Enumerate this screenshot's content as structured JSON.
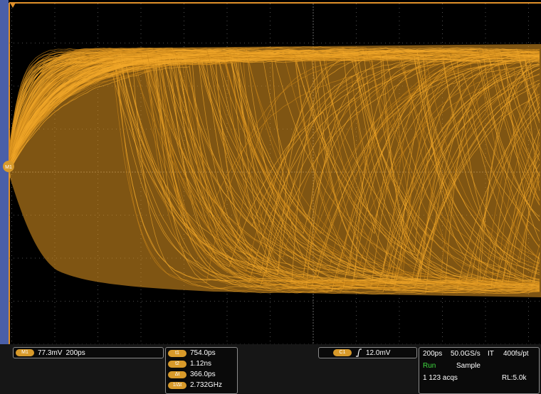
{
  "markers": {
    "reference": "M1"
  },
  "readouts": {
    "math": {
      "label": "M1",
      "scale": "77.3mV",
      "timebase": "200ps"
    },
    "cursors": [
      {
        "label": "t1",
        "value": "754.0ps"
      },
      {
        "label": "t2",
        "value": "1.12ns"
      },
      {
        "label": "Δt",
        "value": "366.0ps"
      },
      {
        "label": "1/Δt",
        "value": "2.732GHz"
      }
    ],
    "trigger": {
      "label": "C1",
      "level": "12.0mV"
    },
    "acquisition": {
      "timebase": "200ps",
      "sample_rate": "50.0GS/s",
      "mode_code": "IT",
      "resolution": "400fs/pt",
      "state": "Run",
      "mode": "Sample",
      "acqs": "1 123 acqs",
      "record_length": "RL:5.0k"
    }
  }
}
